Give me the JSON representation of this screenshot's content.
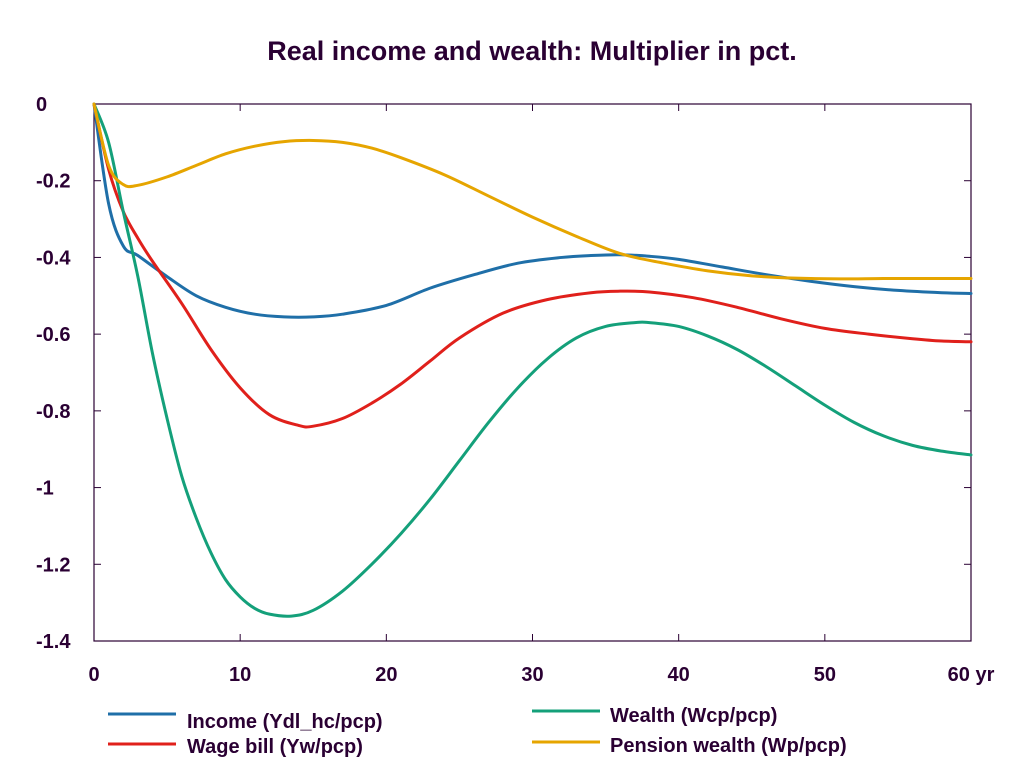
{
  "chart_data": {
    "type": "line",
    "title": "Real income and wealth: Multiplier in pct.",
    "xlabel": "",
    "ylabel": "",
    "xlim": [
      0,
      60
    ],
    "ylim": [
      -1.4,
      0
    ],
    "x_ticks": [
      0,
      10,
      20,
      30,
      40,
      50,
      60
    ],
    "x_tick_labels": [
      "0",
      "10",
      "20",
      "30",
      "40",
      "50",
      "60 yr"
    ],
    "y_ticks": [
      0,
      -0.2,
      -0.4,
      -0.6,
      -0.8,
      -1,
      -1.2,
      -1.4
    ],
    "y_tick_labels": [
      "0",
      "-0.2",
      "-0.4",
      "-0.6",
      "-0.8",
      "-1",
      "-1.2",
      "-1.4"
    ],
    "grid": false,
    "legend_position": "bottom",
    "series": [
      {
        "name": "Income (Ydl_hc/pcp)",
        "color": "#1f6fa8",
        "points": [
          [
            0,
            0
          ],
          [
            1,
            -0.26
          ],
          [
            2,
            -0.37
          ],
          [
            3,
            -0.395
          ],
          [
            5,
            -0.45
          ],
          [
            7,
            -0.5
          ],
          [
            9,
            -0.53
          ],
          [
            11,
            -0.548
          ],
          [
            13,
            -0.555
          ],
          [
            15,
            -0.555
          ],
          [
            17,
            -0.548
          ],
          [
            20,
            -0.525
          ],
          [
            23,
            -0.48
          ],
          [
            26,
            -0.445
          ],
          [
            29,
            -0.415
          ],
          [
            32,
            -0.4
          ],
          [
            34,
            -0.395
          ],
          [
            36,
            -0.393
          ],
          [
            38,
            -0.397
          ],
          [
            40,
            -0.405
          ],
          [
            43,
            -0.425
          ],
          [
            46,
            -0.445
          ],
          [
            49,
            -0.462
          ],
          [
            52,
            -0.476
          ],
          [
            55,
            -0.486
          ],
          [
            58,
            -0.492
          ],
          [
            60,
            -0.494
          ]
        ]
      },
      {
        "name": "Wage bill (Yw/pcp)",
        "color": "#e0201b",
        "points": [
          [
            0,
            0
          ],
          [
            1,
            -0.17
          ],
          [
            2,
            -0.28
          ],
          [
            3,
            -0.35
          ],
          [
            4,
            -0.41
          ],
          [
            6,
            -0.52
          ],
          [
            8,
            -0.64
          ],
          [
            10,
            -0.74
          ],
          [
            12,
            -0.81
          ],
          [
            14,
            -0.838
          ],
          [
            15,
            -0.84
          ],
          [
            17,
            -0.82
          ],
          [
            19,
            -0.78
          ],
          [
            21,
            -0.73
          ],
          [
            23,
            -0.67
          ],
          [
            25,
            -0.61
          ],
          [
            28,
            -0.545
          ],
          [
            31,
            -0.51
          ],
          [
            34,
            -0.492
          ],
          [
            36,
            -0.488
          ],
          [
            38,
            -0.49
          ],
          [
            41,
            -0.505
          ],
          [
            44,
            -0.53
          ],
          [
            47,
            -0.56
          ],
          [
            50,
            -0.585
          ],
          [
            53,
            -0.6
          ],
          [
            56,
            -0.612
          ],
          [
            58,
            -0.618
          ],
          [
            60,
            -0.62
          ]
        ]
      },
      {
        "name": "Wealth (Wcp/pcp)",
        "color": "#14a07a",
        "points": [
          [
            0,
            0
          ],
          [
            1,
            -0.1
          ],
          [
            2,
            -0.28
          ],
          [
            3,
            -0.45
          ],
          [
            4,
            -0.65
          ],
          [
            5,
            -0.82
          ],
          [
            6,
            -0.97
          ],
          [
            7,
            -1.08
          ],
          [
            8,
            -1.17
          ],
          [
            9,
            -1.24
          ],
          [
            10,
            -1.285
          ],
          [
            11,
            -1.315
          ],
          [
            12,
            -1.33
          ],
          [
            13.5,
            -1.335
          ],
          [
            15,
            -1.32
          ],
          [
            17,
            -1.27
          ],
          [
            19,
            -1.2
          ],
          [
            21,
            -1.12
          ],
          [
            23,
            -1.03
          ],
          [
            25,
            -0.93
          ],
          [
            27,
            -0.83
          ],
          [
            29,
            -0.74
          ],
          [
            31,
            -0.665
          ],
          [
            33,
            -0.61
          ],
          [
            35,
            -0.58
          ],
          [
            37,
            -0.57
          ],
          [
            38,
            -0.57
          ],
          [
            40,
            -0.58
          ],
          [
            42,
            -0.605
          ],
          [
            44,
            -0.64
          ],
          [
            46,
            -0.685
          ],
          [
            48,
            -0.735
          ],
          [
            50,
            -0.785
          ],
          [
            52,
            -0.83
          ],
          [
            54,
            -0.865
          ],
          [
            56,
            -0.89
          ],
          [
            58,
            -0.905
          ],
          [
            60,
            -0.915
          ]
        ]
      },
      {
        "name": "Pension wealth (Wp/pcp)",
        "color": "#e6a500",
        "points": [
          [
            0,
            0
          ],
          [
            1,
            -0.16
          ],
          [
            2,
            -0.21
          ],
          [
            3,
            -0.212
          ],
          [
            5,
            -0.19
          ],
          [
            7,
            -0.16
          ],
          [
            9,
            -0.13
          ],
          [
            11,
            -0.11
          ],
          [
            13,
            -0.098
          ],
          [
            15,
            -0.095
          ],
          [
            17,
            -0.1
          ],
          [
            19,
            -0.115
          ],
          [
            21,
            -0.14
          ],
          [
            24,
            -0.185
          ],
          [
            27,
            -0.24
          ],
          [
            30,
            -0.295
          ],
          [
            33,
            -0.345
          ],
          [
            36,
            -0.39
          ],
          [
            39,
            -0.415
          ],
          [
            42,
            -0.435
          ],
          [
            45,
            -0.448
          ],
          [
            48,
            -0.454
          ],
          [
            51,
            -0.456
          ],
          [
            54,
            -0.455
          ],
          [
            57,
            -0.455
          ],
          [
            60,
            -0.455
          ]
        ]
      }
    ]
  }
}
